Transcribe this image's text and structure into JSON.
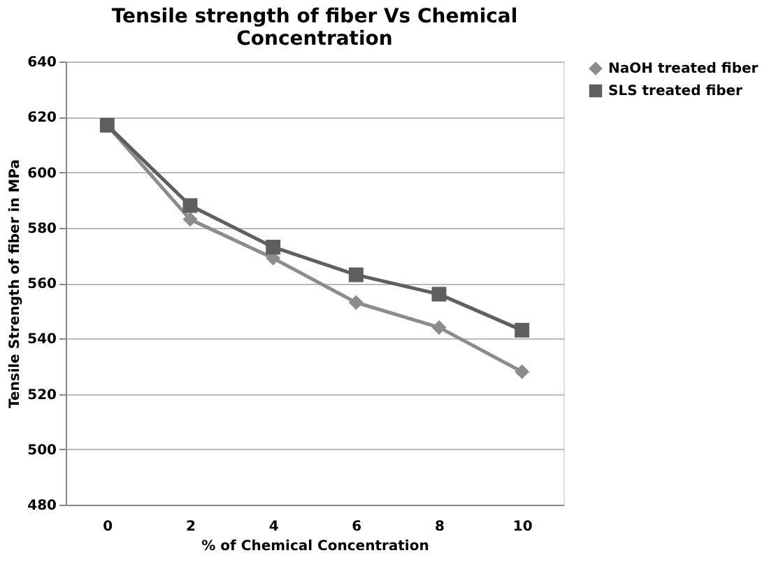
{
  "chart_data": {
    "type": "line",
    "title": [
      "Tensile strength of fiber Vs Chemical",
      "Concentration"
    ],
    "xlabel": "% of Chemical  Concentration",
    "ylabel": "Tensile Strength of fiber in MPa",
    "categories": [
      "0",
      "2",
      "4",
      "6",
      "8",
      "10"
    ],
    "series": [
      {
        "name": "NaOH treated fiber",
        "color": "#8c8c8c",
        "marker": "diamond",
        "values": [
          617,
          583,
          569,
          553,
          544,
          528
        ]
      },
      {
        "name": "SLS treated fiber",
        "color": "#5f5f5f",
        "marker": "square",
        "values": [
          617,
          588,
          573,
          563,
          556,
          543
        ]
      }
    ],
    "ylim": [
      480,
      640
    ],
    "yticks": [
      480,
      500,
      520,
      540,
      560,
      580,
      600,
      620,
      640
    ],
    "grid": "y",
    "legend": "right",
    "line_style": "solid"
  }
}
